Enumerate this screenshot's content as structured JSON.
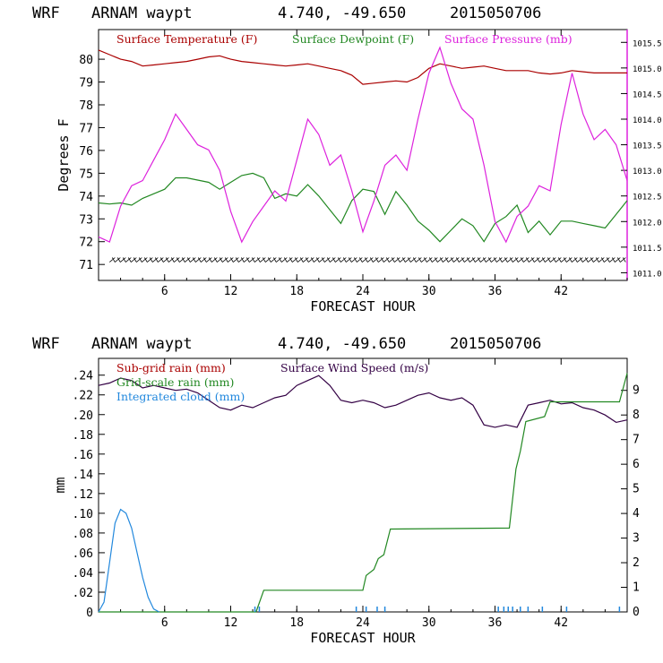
{
  "chart_data": [
    {
      "type": "line",
      "header": {
        "model": "WRF",
        "site": "ARNAM waypt",
        "coords": "4.740, -49.650",
        "date": "2015050706"
      },
      "xlabel": "FORECAST HOUR",
      "ylabel": "Degrees F",
      "xlim": [
        0,
        48
      ],
      "xticks": [
        6,
        12,
        18,
        24,
        30,
        36,
        42
      ],
      "ylim": [
        70.3,
        81.3
      ],
      "yticks": [
        71,
        72,
        73,
        74,
        75,
        76,
        77,
        78,
        79,
        80
      ],
      "y2lim": [
        1010.85,
        1015.75
      ],
      "y2ticks": [
        "1011.0",
        "1011.5",
        "1012.0",
        "1012.5",
        "1013.0",
        "1013.5",
        "1014.0",
        "1014.5",
        "1015.0",
        "1015.5"
      ],
      "series": [
        {
          "name": "Surface Temperature (F)",
          "color": "#aa0000",
          "axis": "left",
          "x": [
            0,
            1,
            2,
            3,
            4,
            5,
            6,
            7,
            8,
            9,
            10,
            11,
            12,
            13,
            14,
            15,
            16,
            17,
            18,
            19,
            20,
            21,
            22,
            23,
            24,
            25,
            26,
            27,
            28,
            29,
            30,
            31,
            32,
            33,
            34,
            35,
            36,
            37,
            38,
            39,
            40,
            41,
            42,
            43,
            44,
            45,
            46,
            47,
            48
          ],
          "values": [
            80.4,
            80.2,
            80.0,
            79.9,
            79.7,
            79.75,
            79.8,
            79.85,
            79.9,
            80.0,
            80.1,
            80.15,
            80.0,
            79.9,
            79.85,
            79.8,
            79.75,
            79.7,
            79.75,
            79.8,
            79.7,
            79.6,
            79.5,
            79.3,
            78.9,
            78.95,
            79.0,
            79.05,
            79.0,
            79.2,
            79.6,
            79.8,
            79.7,
            79.6,
            79.65,
            79.7,
            79.6,
            79.5,
            79.5,
            79.5,
            79.4,
            79.35,
            79.4,
            79.5,
            79.45,
            79.4,
            79.4,
            79.4,
            79.4
          ]
        },
        {
          "name": "Surface Dewpoint (F)",
          "color": "#228822",
          "axis": "left",
          "x": [
            0,
            1,
            2,
            3,
            4,
            5,
            6,
            7,
            8,
            9,
            10,
            11,
            12,
            13,
            14,
            15,
            16,
            17,
            18,
            19,
            20,
            21,
            22,
            23,
            24,
            25,
            26,
            27,
            28,
            29,
            30,
            31,
            32,
            33,
            34,
            35,
            36,
            37,
            38,
            39,
            40,
            41,
            42,
            43,
            44,
            45,
            46,
            47,
            48
          ],
          "values": [
            73.7,
            73.65,
            73.7,
            73.6,
            73.9,
            74.1,
            74.3,
            74.8,
            74.8,
            74.7,
            74.6,
            74.3,
            74.6,
            74.9,
            75.0,
            74.8,
            73.9,
            74.1,
            74.0,
            74.5,
            74.0,
            73.4,
            72.8,
            73.8,
            74.3,
            74.2,
            73.2,
            74.2,
            73.6,
            72.9,
            72.5,
            72.0,
            72.5,
            73.0,
            72.7,
            72.0,
            72.8,
            73.1,
            73.6,
            72.4,
            72.9,
            72.3,
            72.9,
            72.9,
            72.8,
            72.7,
            72.6,
            73.2,
            73.8
          ]
        },
        {
          "name": "Surface Pressure (mb)",
          "color": "#dd22dd",
          "axis": "right",
          "x": [
            0,
            1,
            2,
            3,
            4,
            5,
            6,
            7,
            8,
            9,
            10,
            11,
            12,
            13,
            14,
            15,
            16,
            17,
            18,
            19,
            20,
            21,
            22,
            23,
            24,
            25,
            26,
            27,
            28,
            29,
            30,
            31,
            32,
            33,
            34,
            35,
            36,
            37,
            38,
            39,
            40,
            41,
            42,
            43,
            44,
            45,
            46,
            47,
            48
          ],
          "values": [
            1011.7,
            1011.6,
            1012.3,
            1012.7,
            1012.8,
            1013.2,
            1013.6,
            1014.1,
            1013.8,
            1013.5,
            1013.4,
            1013.0,
            1012.2,
            1011.6,
            1012.0,
            1012.3,
            1012.6,
            1012.4,
            1013.2,
            1014.0,
            1013.7,
            1013.1,
            1013.3,
            1012.6,
            1011.8,
            1012.4,
            1013.1,
            1013.3,
            1013.0,
            1014.0,
            1014.9,
            1015.4,
            1014.7,
            1014.2,
            1014.0,
            1013.1,
            1012.0,
            1011.6,
            1012.1,
            1012.3,
            1012.7,
            1012.6,
            1013.9,
            1014.9,
            1014.1,
            1013.6,
            1013.8,
            1013.5,
            1012.8
          ]
        }
      ],
      "hatch_band": {
        "from_hour": 1,
        "to_hour": 48,
        "y_low": 71.1,
        "y_high": 71.3
      }
    },
    {
      "type": "line",
      "header": {
        "model": "WRF",
        "site": "ARNAM waypt",
        "coords": "4.740, -49.650",
        "date": "2015050706"
      },
      "xlabel": "FORECAST HOUR",
      "ylabel": "mm",
      "xlim": [
        0,
        48
      ],
      "xticks": [
        6,
        12,
        18,
        24,
        30,
        36,
        42
      ],
      "ylim": [
        0,
        0.257
      ],
      "yticks": [
        "0",
        ".02",
        ".04",
        ".06",
        ".08",
        ".10",
        ".12",
        ".14",
        ".16",
        ".18",
        ".20",
        ".22",
        ".24"
      ],
      "y2lim": [
        0,
        10.3
      ],
      "y2ticks": [
        "0",
        "1",
        "2",
        "3",
        "4",
        "5",
        "6",
        "7",
        "8",
        "9"
      ],
      "series": [
        {
          "name": "Sub-grid rain (mm)",
          "color": "#aa0000",
          "axis": "left",
          "x": [],
          "values": []
        },
        {
          "name": "Surface Wind Speed (m/s)",
          "color": "#330044",
          "axis": "right",
          "x": [
            0,
            1,
            2,
            3,
            4,
            5,
            6,
            7,
            8,
            9,
            10,
            11,
            12,
            13,
            14,
            15,
            16,
            17,
            18,
            19,
            20,
            21,
            22,
            23,
            24,
            25,
            26,
            27,
            28,
            29,
            30,
            31,
            32,
            33,
            34,
            35,
            36,
            37,
            38,
            39,
            40,
            41,
            42,
            43,
            44,
            45,
            46,
            47,
            48
          ],
          "values": [
            9.2,
            9.3,
            9.5,
            9.4,
            9.1,
            9.2,
            9.1,
            9.0,
            9.05,
            8.9,
            8.6,
            8.3,
            8.2,
            8.4,
            8.3,
            8.5,
            8.7,
            8.8,
            9.2,
            9.4,
            9.6,
            9.2,
            8.6,
            8.5,
            8.6,
            8.5,
            8.3,
            8.4,
            8.6,
            8.8,
            8.9,
            8.7,
            8.6,
            8.7,
            8.4,
            7.6,
            7.5,
            7.6,
            7.5,
            8.4,
            8.5,
            8.6,
            8.45,
            8.5,
            8.3,
            8.2,
            8.0,
            7.7,
            7.8
          ]
        },
        {
          "name": "Grid-scale rain (mm)",
          "color": "#228822",
          "axis": "left",
          "x": [
            0,
            14.3,
            15.0,
            24.0,
            24.3,
            25.0,
            25.4,
            25.9,
            26.5,
            37.3,
            37.9,
            38.3,
            38.8,
            40.5,
            41.0,
            47.3,
            48.0
          ],
          "values": [
            0,
            0,
            0.022,
            0.022,
            0.037,
            0.043,
            0.054,
            0.058,
            0.084,
            0.085,
            0.145,
            0.163,
            0.193,
            0.198,
            0.213,
            0.213,
            0.242
          ]
        },
        {
          "name": "Integrated cloud (mm)",
          "color": "#2288dd",
          "axis": "left",
          "x": [
            0,
            0.5,
            1.0,
            1.5,
            2.0,
            2.5,
            3.0,
            3.5,
            4.0,
            4.5,
            5.0,
            5.5
          ],
          "values": [
            0,
            0.01,
            0.05,
            0.09,
            0.104,
            0.1,
            0.085,
            0.06,
            0.035,
            0.015,
            0.003,
            0
          ],
          "spikes_hours": [
            14.2,
            14.6,
            23.4,
            24.3,
            25.3,
            26.0,
            36.3,
            36.8,
            37.2,
            37.6,
            38.3,
            39.0,
            40.3,
            42.5,
            47.3
          ]
        }
      ]
    }
  ]
}
